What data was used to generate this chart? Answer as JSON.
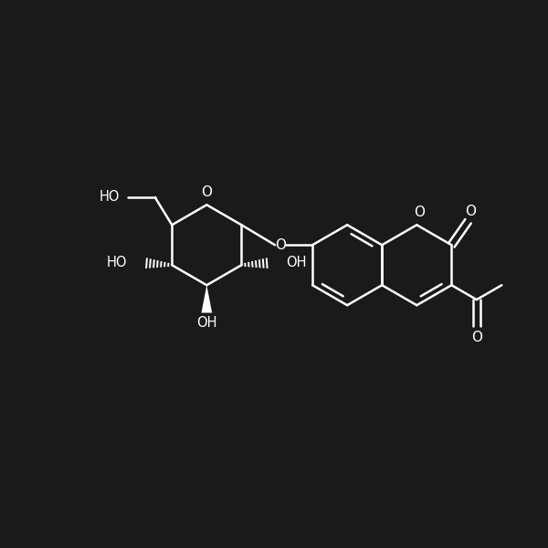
{
  "background_color": "#1a1a1a",
  "line_color": "#ffffff",
  "line_width": 1.8,
  "figsize": [
    6.0,
    6.0
  ],
  "dpi": 100,
  "xlim": [
    0,
    12
  ],
  "ylim": [
    0,
    12
  ]
}
